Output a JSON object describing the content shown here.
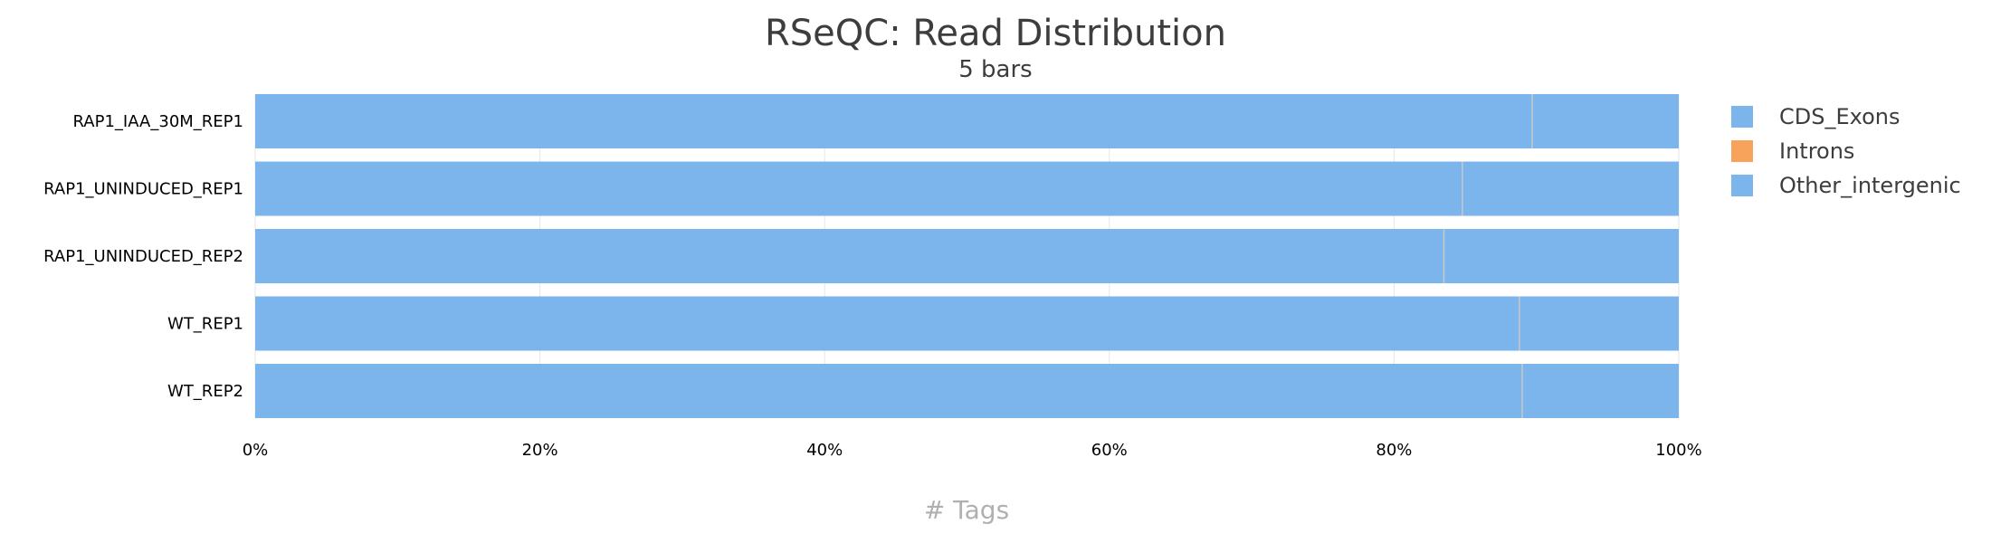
{
  "chart_data": {
    "type": "bar",
    "orientation": "horizontal",
    "stacked": true,
    "normalized": true,
    "title": "RSeQC: Read Distribution",
    "subtitle": "5 bars",
    "xlabel": "# Tags",
    "ylabel": "",
    "xlim": [
      0,
      100
    ],
    "x_ticks": [
      "0%",
      "20%",
      "40%",
      "60%",
      "80%",
      "100%"
    ],
    "grid": true,
    "legend_position": "right",
    "categories": [
      "RAP1_IAA_30M_REP1",
      "RAP1_UNINDUCED_REP1",
      "RAP1_UNINDUCED_REP2",
      "WT_REP1",
      "WT_REP2"
    ],
    "series": [
      {
        "name": "CDS_Exons",
        "color": "#7cb5ec",
        "values": [
          89.7,
          84.8,
          83.5,
          88.8,
          89.0
        ]
      },
      {
        "name": "Introns",
        "color": "#f7a35c",
        "values": [
          0.0,
          0.0,
          0.0,
          0.0,
          0.0
        ]
      },
      {
        "name": "Other_intergenic",
        "color": "#7cb5ec",
        "values": [
          10.3,
          15.2,
          16.5,
          11.2,
          11.0
        ]
      }
    ]
  }
}
